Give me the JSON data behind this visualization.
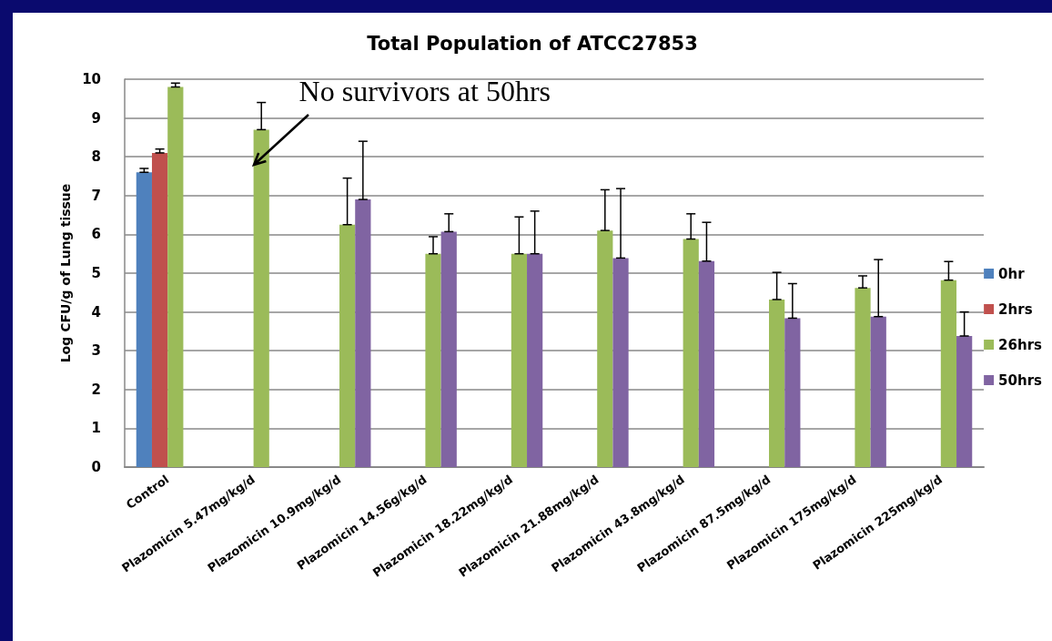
{
  "chart_data": {
    "type": "bar",
    "title": "Total Population of ATCC27853",
    "ylabel": "Log CFU/g of Lung tissue",
    "categories": [
      "Control",
      "Plazomicin 5.47mg/kg/d",
      "Plazomicin 10.9mg/kg/d",
      "Plazomicin 14.56g/kg/d",
      "Plazomicin 18.22mg/kg/d",
      "Plazomicin 21.88mg/kg/d",
      "Plazomicin 43.8mg/kg/d",
      "Plazomicin 87.5mg/kg/d",
      "Plazomicin 175mg/kg/d",
      "Plazomicin 225mg/kg/d"
    ],
    "series": [
      {
        "name": "0hr",
        "color": "#4f81bd",
        "values": [
          7.6,
          null,
          null,
          null,
          null,
          null,
          null,
          null,
          null,
          null
        ],
        "errors": [
          [
            7.6,
            7.7
          ],
          null,
          null,
          null,
          null,
          null,
          null,
          null,
          null,
          null
        ]
      },
      {
        "name": "2hrs",
        "color": "#c0504d",
        "values": [
          8.1,
          null,
          null,
          null,
          null,
          null,
          null,
          null,
          null,
          null
        ],
        "errors": [
          [
            8.1,
            8.2
          ],
          null,
          null,
          null,
          null,
          null,
          null,
          null,
          null,
          null
        ]
      },
      {
        "name": "26hrs",
        "color": "#9bbb59",
        "values": [
          9.8,
          8.7,
          6.25,
          5.5,
          5.5,
          6.1,
          5.88,
          4.32,
          4.62,
          4.82
        ],
        "errors": [
          [
            9.8,
            9.9
          ],
          [
            8.7,
            9.4
          ],
          [
            6.25,
            7.45
          ],
          [
            5.5,
            5.94
          ],
          [
            5.5,
            6.45
          ],
          [
            6.1,
            7.15
          ],
          [
            5.88,
            6.53
          ],
          [
            4.32,
            5.02
          ],
          [
            4.62,
            4.93
          ],
          [
            4.82,
            5.3
          ]
        ]
      },
      {
        "name": "50hrs",
        "color": "#8064a2",
        "values": [
          null,
          null,
          6.9,
          6.07,
          5.5,
          5.39,
          5.31,
          3.84,
          3.88,
          3.38
        ],
        "errors": [
          null,
          null,
          [
            6.9,
            8.4
          ],
          [
            6.07,
            6.53
          ],
          [
            5.5,
            6.6
          ],
          [
            5.39,
            7.18
          ],
          [
            5.31,
            6.31
          ],
          [
            3.84,
            4.73
          ],
          [
            3.88,
            5.35
          ],
          [
            3.38,
            4.0
          ]
        ]
      }
    ],
    "ylim": [
      0,
      10
    ],
    "yticks": [
      0,
      1,
      2,
      3,
      4,
      5,
      6,
      7,
      8,
      9,
      10
    ],
    "grid": "y",
    "legend": "right",
    "annotations": [
      {
        "text": "No survivors at 50hrs",
        "x": "Plazomicin 5.47mg/kg/d",
        "y": 7.8
      }
    ]
  }
}
